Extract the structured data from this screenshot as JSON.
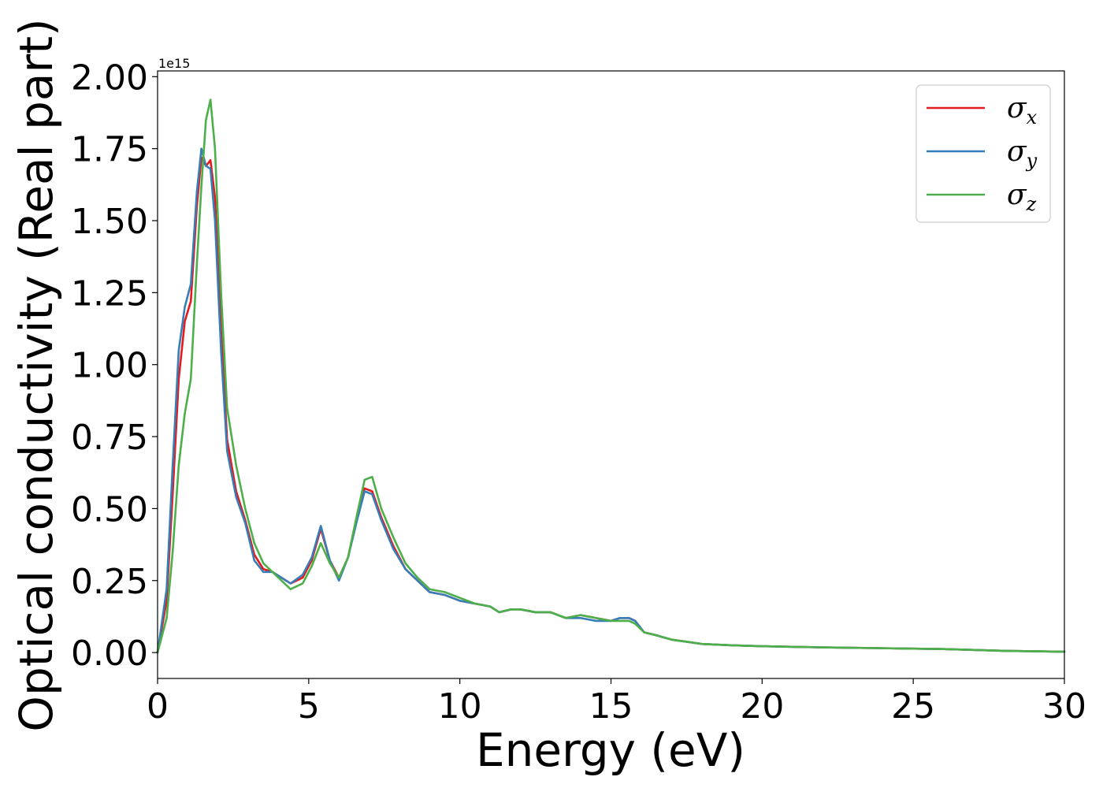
{
  "chart_data": {
    "type": "line",
    "xlabel": "Energy (eV)",
    "ylabel": "Optical conductivity (Real part)",
    "y_offset_label": "1e15",
    "y_scale": 1000000000000000.0,
    "xlim": [
      0,
      30
    ],
    "ylim": [
      -0.09,
      2.02
    ],
    "x_ticks": [
      0,
      5,
      10,
      15,
      20,
      25,
      30
    ],
    "x_tick_labels": [
      "0",
      "5",
      "10",
      "15",
      "20",
      "25",
      "30"
    ],
    "y_ticks": [
      0,
      0.25,
      0.5,
      0.75,
      1.0,
      1.25,
      1.5,
      1.75,
      2.0
    ],
    "y_tick_labels": [
      "0.00",
      "0.25",
      "0.50",
      "0.75",
      "1.00",
      "1.25",
      "1.50",
      "1.75",
      "2.00"
    ],
    "grid": false,
    "legend_position": "top-right",
    "series": [
      {
        "base": "σ",
        "sub": "x",
        "color": "#e41a1c",
        "x": [
          0,
          0.3,
          0.5,
          0.7,
          0.9,
          1.1,
          1.3,
          1.45,
          1.6,
          1.75,
          1.9,
          2.1,
          2.3,
          2.6,
          2.9,
          3.2,
          3.5,
          3.8,
          4.1,
          4.4,
          4.8,
          5.1,
          5.4,
          5.7,
          6.0,
          6.3,
          6.6,
          6.85,
          7.1,
          7.4,
          7.8,
          8.2,
          8.6,
          9.0,
          9.5,
          10,
          10.5,
          11,
          11.3,
          11.7,
          12,
          12.5,
          13,
          13.5,
          14,
          14.5,
          15,
          15.3,
          15.6,
          15.8,
          16.1,
          16.5,
          17,
          18,
          19,
          20,
          22,
          24,
          26,
          28,
          30
        ],
        "y": [
          0,
          0.18,
          0.55,
          0.95,
          1.15,
          1.22,
          1.55,
          1.72,
          1.69,
          1.71,
          1.58,
          1.12,
          0.74,
          0.56,
          0.46,
          0.34,
          0.29,
          0.28,
          0.26,
          0.24,
          0.26,
          0.32,
          0.43,
          0.32,
          0.26,
          0.33,
          0.47,
          0.57,
          0.56,
          0.47,
          0.37,
          0.29,
          0.25,
          0.21,
          0.2,
          0.18,
          0.17,
          0.16,
          0.14,
          0.15,
          0.15,
          0.14,
          0.14,
          0.12,
          0.13,
          0.12,
          0.11,
          0.12,
          0.12,
          0.11,
          0.07,
          0.06,
          0.045,
          0.03,
          0.025,
          0.022,
          0.018,
          0.015,
          0.012,
          0.006,
          0.003
        ]
      },
      {
        "base": "σ",
        "sub": "y",
        "color": "#377eb8",
        "x": [
          0,
          0.3,
          0.5,
          0.7,
          0.9,
          1.1,
          1.3,
          1.45,
          1.6,
          1.75,
          1.9,
          2.1,
          2.3,
          2.6,
          2.9,
          3.2,
          3.5,
          3.8,
          4.1,
          4.4,
          4.8,
          5.1,
          5.4,
          5.7,
          6.0,
          6.3,
          6.6,
          6.85,
          7.1,
          7.4,
          7.8,
          8.2,
          8.6,
          9.0,
          9.5,
          10,
          10.5,
          11,
          11.3,
          11.7,
          12,
          12.5,
          13,
          13.5,
          14,
          14.5,
          15,
          15.3,
          15.6,
          15.8,
          16.1,
          16.5,
          17,
          18,
          19,
          20,
          22,
          24,
          26,
          28,
          30
        ],
        "y": [
          0,
          0.22,
          0.65,
          1.05,
          1.2,
          1.28,
          1.6,
          1.75,
          1.69,
          1.68,
          1.5,
          1.05,
          0.7,
          0.54,
          0.45,
          0.32,
          0.28,
          0.28,
          0.26,
          0.24,
          0.27,
          0.33,
          0.44,
          0.32,
          0.25,
          0.33,
          0.46,
          0.56,
          0.55,
          0.46,
          0.36,
          0.29,
          0.25,
          0.21,
          0.2,
          0.18,
          0.17,
          0.16,
          0.14,
          0.15,
          0.15,
          0.14,
          0.14,
          0.12,
          0.12,
          0.11,
          0.11,
          0.12,
          0.12,
          0.11,
          0.07,
          0.06,
          0.045,
          0.03,
          0.025,
          0.022,
          0.018,
          0.015,
          0.012,
          0.006,
          0.003
        ]
      },
      {
        "base": "σ",
        "sub": "z",
        "color": "#4daf4a",
        "x": [
          0,
          0.3,
          0.5,
          0.7,
          0.9,
          1.1,
          1.3,
          1.45,
          1.6,
          1.75,
          1.9,
          2.1,
          2.3,
          2.6,
          2.9,
          3.2,
          3.5,
          3.8,
          4.1,
          4.4,
          4.8,
          5.1,
          5.4,
          5.7,
          6.0,
          6.3,
          6.6,
          6.85,
          7.1,
          7.4,
          7.8,
          8.2,
          8.6,
          9.0,
          9.5,
          10,
          10.5,
          11,
          11.3,
          11.7,
          12,
          12.5,
          13,
          13.5,
          14,
          14.5,
          15,
          15.3,
          15.6,
          15.8,
          16.1,
          16.5,
          17,
          18,
          19,
          20,
          22,
          24,
          26,
          28,
          30
        ],
        "y": [
          0,
          0.12,
          0.35,
          0.65,
          0.83,
          0.95,
          1.35,
          1.62,
          1.85,
          1.92,
          1.75,
          1.25,
          0.85,
          0.65,
          0.5,
          0.38,
          0.31,
          0.28,
          0.25,
          0.22,
          0.24,
          0.3,
          0.38,
          0.31,
          0.26,
          0.33,
          0.48,
          0.6,
          0.61,
          0.5,
          0.4,
          0.31,
          0.26,
          0.22,
          0.21,
          0.19,
          0.17,
          0.16,
          0.14,
          0.15,
          0.15,
          0.14,
          0.14,
          0.12,
          0.13,
          0.12,
          0.11,
          0.11,
          0.11,
          0.1,
          0.07,
          0.06,
          0.045,
          0.03,
          0.025,
          0.022,
          0.018,
          0.015,
          0.012,
          0.006,
          0.003
        ]
      }
    ]
  }
}
